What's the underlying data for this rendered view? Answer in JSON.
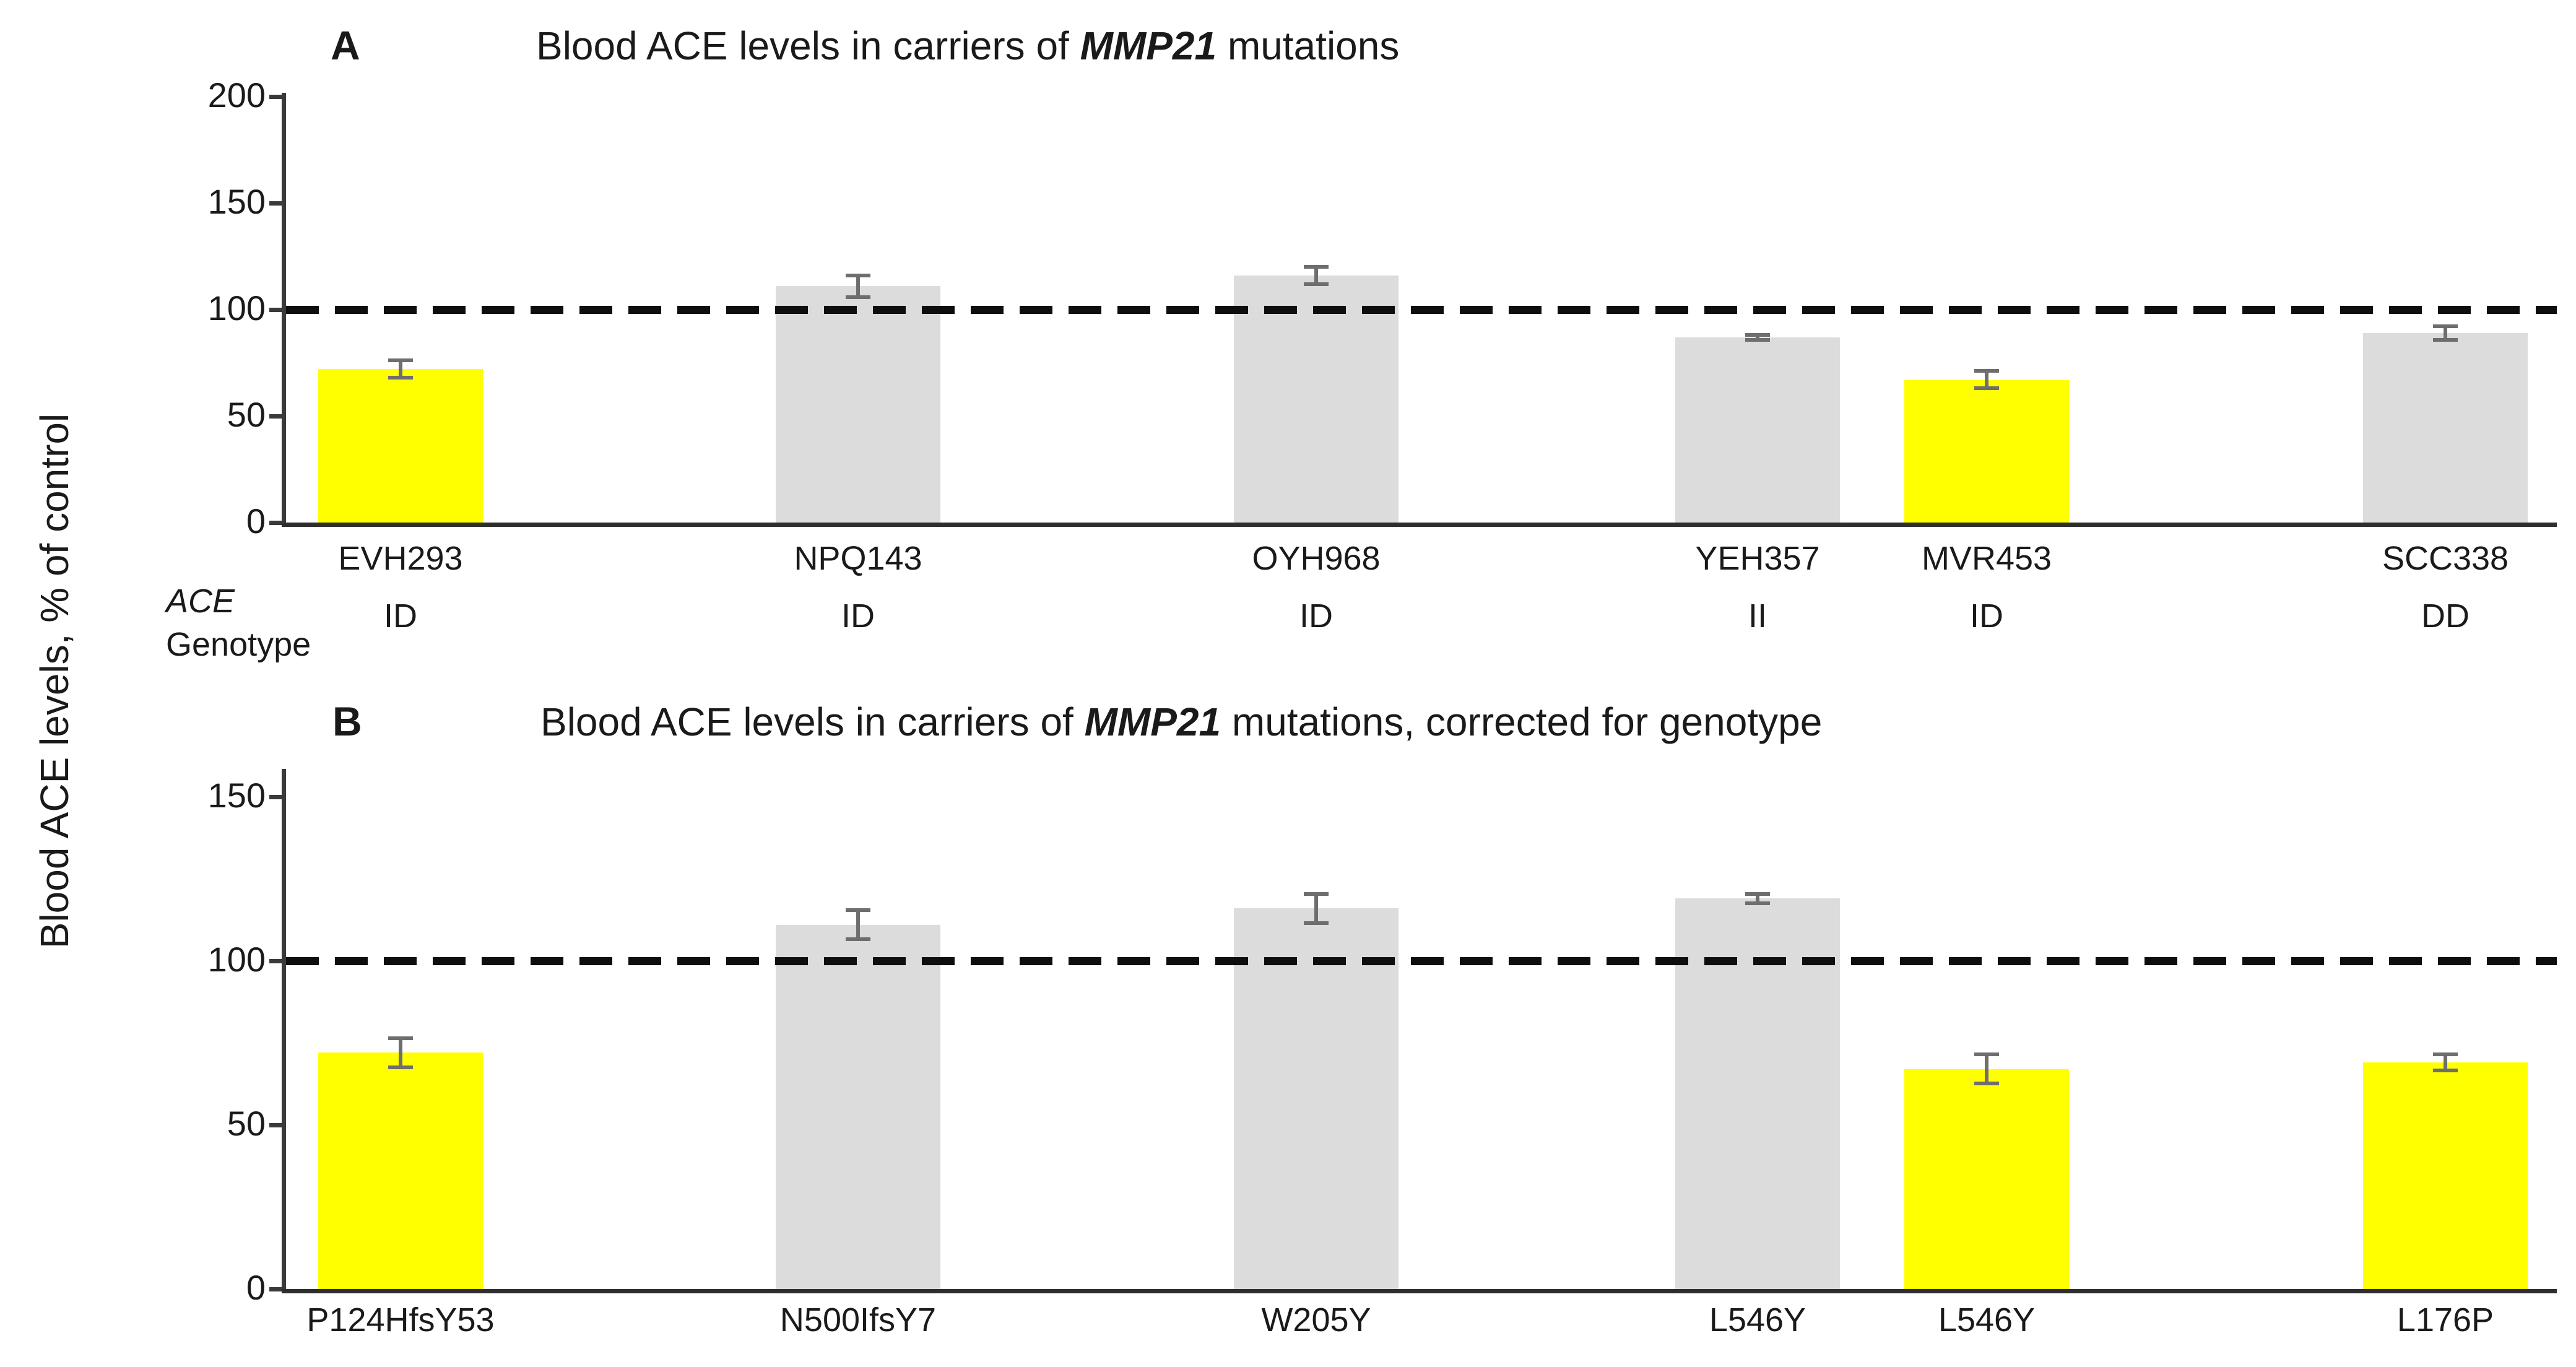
{
  "figure": {
    "y_axis_label": "Blood ACE levels, % of control",
    "genotype_header": {
      "line1": "ACE",
      "line2": "Genotype"
    },
    "colors": {
      "mutant_bar": "#ffff00",
      "control_bar": "#dcdcdc",
      "error_bar": "#6e6e6e",
      "axis": "#3a3a3a",
      "reference_line": "#0e0e0e",
      "background": "#ffffff"
    }
  },
  "chart_data": [
    {
      "type": "bar",
      "panel_label": "A",
      "title": "Blood ACE levels in carriers of MMP21 mutations",
      "title_prefix": "Blood ACE levels in carriers of ",
      "title_gene": "MMP21",
      "title_suffix": " mutations",
      "categories": [
        "EVH293",
        "NPQ143",
        "OYH968",
        "YEH357",
        "MVR453",
        "SCC338"
      ],
      "genotypes": [
        "ID",
        "ID",
        "ID",
        "II",
        "ID",
        "DD"
      ],
      "values": [
        72,
        111,
        116,
        87,
        67,
        89
      ],
      "errors": [
        5,
        6,
        5,
        2,
        5,
        4
      ],
      "bar_colors": [
        "#ffff00",
        "#dcdcdc",
        "#dcdcdc",
        "#dcdcdc",
        "#ffff00",
        "#dcdcdc"
      ],
      "reference_line": 100,
      "ylim": [
        0,
        200
      ],
      "yticks": [
        0,
        50,
        100,
        150,
        200
      ],
      "xlabel": "",
      "ylabel": "Blood ACE levels, % of control",
      "grid": false,
      "legend": false
    },
    {
      "type": "bar",
      "panel_label": "B",
      "title": "Blood ACE levels in carriers of MMP21 mutations, corrected for genotype",
      "title_prefix": "Blood ACE levels in carriers of ",
      "title_gene": "MMP21",
      "title_suffix": " mutations, corrected for genotype",
      "categories": [
        "P124HfsY53",
        "N500IfsY7",
        "W205Y",
        "L546Y",
        "L546Y",
        "L176P"
      ],
      "values": [
        72,
        111,
        116,
        119,
        67,
        69
      ],
      "errors": [
        5,
        5,
        5,
        2,
        5,
        3
      ],
      "bar_colors": [
        "#ffff00",
        "#dcdcdc",
        "#dcdcdc",
        "#dcdcdc",
        "#ffff00",
        "#ffff00"
      ],
      "reference_line": 100,
      "ylim": [
        0,
        160
      ],
      "yticks": [
        0,
        50,
        100,
        150
      ],
      "xlabel": "",
      "ylabel": "Blood ACE levels, % of control",
      "grid": false,
      "legend": false
    }
  ]
}
